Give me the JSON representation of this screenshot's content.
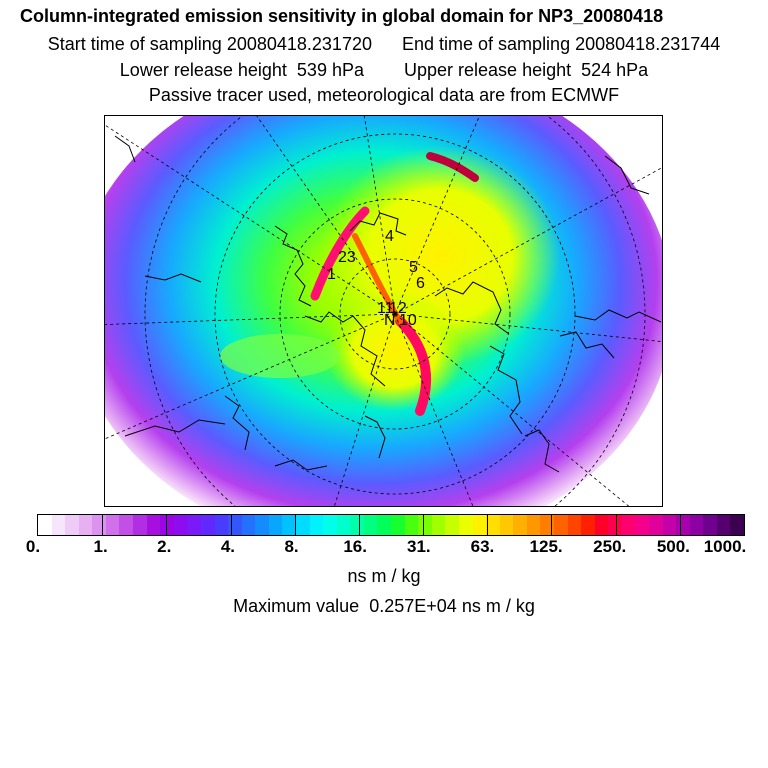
{
  "header": {
    "title": "Column-integrated emission sensitivity in global domain for NP3_20080418",
    "start_label": "Start time of sampling",
    "start_value": "20080418.231720",
    "end_label": "End time of sampling",
    "end_value": "20080418.231744",
    "lower_label": "Lower release height",
    "lower_value": "539 hPa",
    "upper_label": "Upper release height",
    "upper_value": "524 hPa",
    "tracer_line": "Passive tracer used, meteorological data are from ECMWF"
  },
  "map": {
    "projection": "north polar stereographic",
    "point_labels": [
      "1",
      "23",
      "4",
      "5",
      "6",
      "11",
      "12",
      "N",
      "10"
    ]
  },
  "colorbar": {
    "ticks": [
      "0.",
      "1.",
      "2.",
      "4.",
      "8.",
      "16.",
      "31.",
      "63.",
      "125.",
      "250.",
      "500.",
      "1000."
    ],
    "colors": [
      "#ffffff",
      "#f6e6fb",
      "#efccf7",
      "#e6b0f3",
      "#dc92ef",
      "#d070ea",
      "#c24fe6",
      "#b22ee2",
      "#a60fe0",
      "#9b05e6",
      "#8d0cf0",
      "#7a1af8",
      "#6128ff",
      "#4a3cff",
      "#3456ff",
      "#2470ff",
      "#148cff",
      "#08a6ff",
      "#00c2ff",
      "#00dcff",
      "#00f2ff",
      "#00ffea",
      "#00ffcc",
      "#00ffa8",
      "#00ff80",
      "#00ff58",
      "#18ff30",
      "#48ff10",
      "#78ff00",
      "#a2ff00",
      "#c8ff00",
      "#eaff00",
      "#fff200",
      "#ffde00",
      "#ffc800",
      "#ffb000",
      "#ff9800",
      "#ff7e00",
      "#ff6200",
      "#ff4400",
      "#ff2000",
      "#ff0028",
      "#ff0050",
      "#ff0070",
      "#f5008a",
      "#e0009c",
      "#c400a8",
      "#a800ac",
      "#8c00a4",
      "#70008e",
      "#560070",
      "#3c0050"
    ],
    "units": "ns m / kg"
  },
  "footer": {
    "max_label": "Maximum value",
    "max_value": "0.257E+04",
    "max_units": "ns m / kg"
  }
}
